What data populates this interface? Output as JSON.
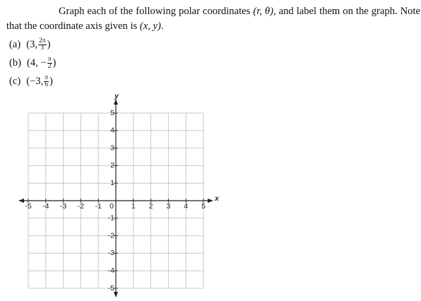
{
  "problem": {
    "intro": [
      "Graph each of the following polar coordinates ",
      "(r, θ)",
      ", and label them on the graph. Note that the coordinate axis given is ",
      "(x, y)",
      "."
    ],
    "items": [
      {
        "label": "(a)",
        "prefix": "(3, ",
        "num": "2π",
        "den": "3",
        "suffix": ")"
      },
      {
        "label": "(b)",
        "prefix": "(4, −",
        "num": "π",
        "den": "2",
        "suffix": ")"
      },
      {
        "label": "(c)",
        "prefix": "(−3, ",
        "num": "π",
        "den": "6",
        "suffix": ")"
      }
    ]
  },
  "graph": {
    "x_label": "x",
    "y_label": "y",
    "origin_label": "0",
    "xlim": [
      -5,
      5
    ],
    "ylim": [
      -5,
      5
    ],
    "xticks": [
      -5,
      -4,
      -3,
      -2,
      -1,
      1,
      2,
      3,
      4,
      5
    ],
    "yticks": [
      -5,
      -4,
      -3,
      -2,
      -1,
      1,
      2,
      3,
      4,
      5
    ]
  }
}
